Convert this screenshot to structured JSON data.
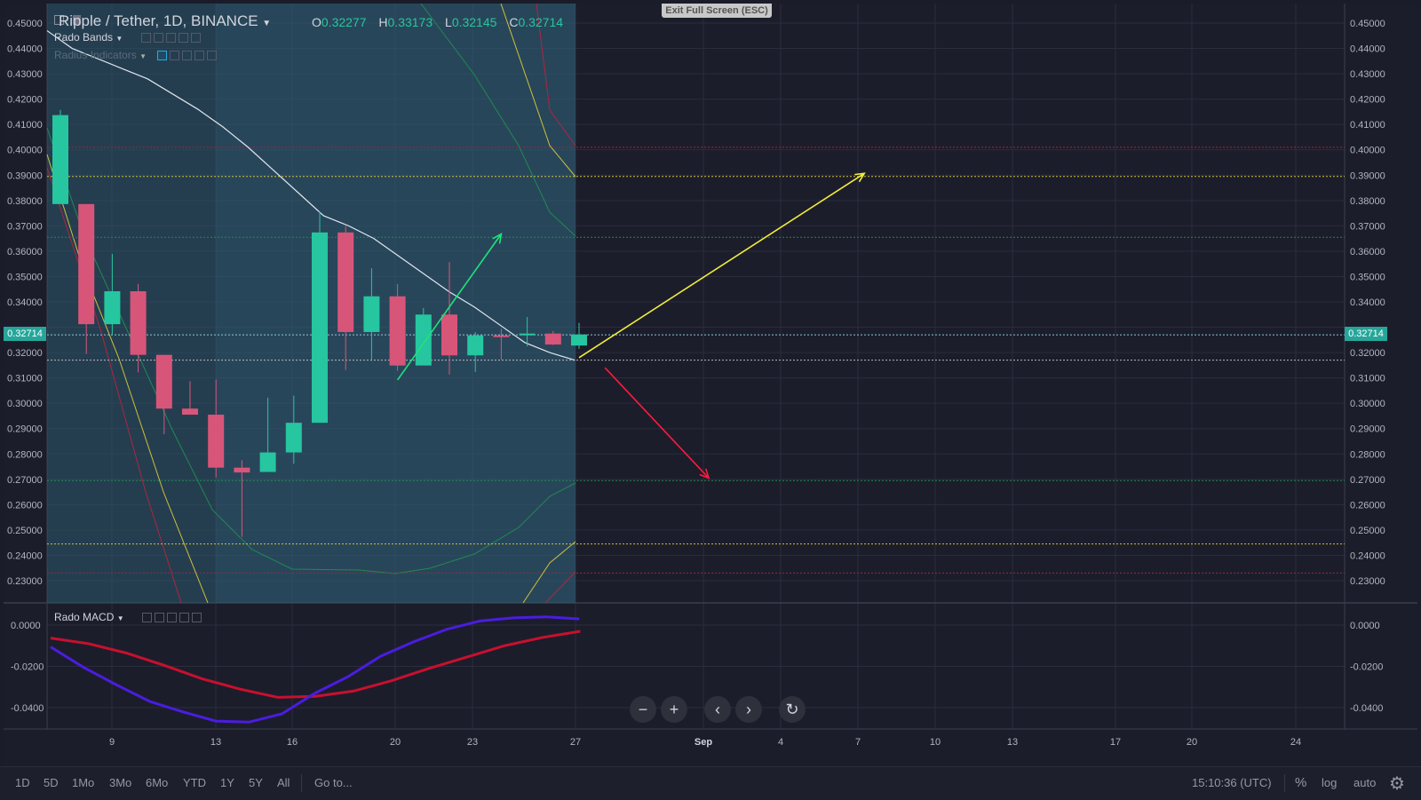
{
  "window": {
    "exit_fullscreen": "Exit Full Screen (ESC)"
  },
  "header": {
    "symbol_title": "Ripple / Tether, 1D, BINANCE",
    "ohlc": {
      "o_label": "O",
      "o": "0.32277",
      "h_label": "H",
      "h": "0.33173",
      "l_label": "L",
      "l": "0.32145",
      "c_label": "C",
      "c": "0.32714"
    }
  },
  "indicators": {
    "bands": "Rado Bands",
    "radius": "Radius Indicators",
    "macd": "Rado MACD"
  },
  "price_axis": {
    "ticks": [
      "0.45000",
      "0.44000",
      "0.43000",
      "0.42000",
      "0.41000",
      "0.40000",
      "0.39000",
      "0.38000",
      "0.37000",
      "0.36000",
      "0.35000",
      "0.34000",
      "0.32000",
      "0.31000",
      "0.30000",
      "0.29000",
      "0.28000",
      "0.27000",
      "0.26000",
      "0.25000",
      "0.24000",
      "0.23000"
    ],
    "current_price": "0.32714"
  },
  "macd_axis": {
    "ticks": [
      "0.0000",
      "-0.0200",
      "-0.0400"
    ]
  },
  "time_axis": {
    "ticks": [
      "9",
      "13",
      "16",
      "20",
      "23",
      "27",
      "Sep",
      "4",
      "7",
      "10",
      "13",
      "17",
      "20",
      "24"
    ]
  },
  "colors": {
    "bull": "#26c6a0",
    "bear": "#d8557a",
    "background": "#1c1d2b",
    "band_fill": "#2b5a70"
  },
  "nav_buttons": {
    "zoom_out": "−",
    "zoom_in": "+",
    "scroll_left": "‹",
    "scroll_right": "›",
    "reset": "↻"
  },
  "bottom_bar": {
    "ranges": [
      "1D",
      "5D",
      "1Mo",
      "3Mo",
      "6Mo",
      "YTD",
      "1Y",
      "5Y",
      "All"
    ],
    "goto": "Go to...",
    "time": "15:10:36 (UTC)",
    "percent": "%",
    "log": "log",
    "auto": "auto",
    "settings_icon": "gear-icon"
  },
  "chart_data": {
    "type": "candlestick",
    "title": "Ripple / Tether, 1D, BINANCE",
    "ylim": [
      0.222,
      0.457
    ],
    "candles": [
      {
        "o": 0.3786,
        "h": 0.4157,
        "l": 0.3786,
        "c": 0.4137
      },
      {
        "o": 0.3786,
        "h": 0.3786,
        "l": 0.3194,
        "c": 0.3312
      },
      {
        "o": 0.3312,
        "h": 0.3589,
        "l": 0.3272,
        "c": 0.3442
      },
      {
        "o": 0.3442,
        "h": 0.3471,
        "l": 0.3122,
        "c": 0.3191
      },
      {
        "o": 0.3191,
        "h": 0.3191,
        "l": 0.2878,
        "c": 0.2979
      },
      {
        "o": 0.2979,
        "h": 0.3087,
        "l": 0.2955,
        "c": 0.2955
      },
      {
        "o": 0.2955,
        "h": 0.3094,
        "l": 0.2707,
        "c": 0.2746
      },
      {
        "o": 0.2746,
        "h": 0.2775,
        "l": 0.2473,
        "c": 0.2727
      },
      {
        "o": 0.2729,
        "h": 0.3022,
        "l": 0.2729,
        "c": 0.2806
      },
      {
        "o": 0.2806,
        "h": 0.303,
        "l": 0.2761,
        "c": 0.2923
      },
      {
        "o": 0.2923,
        "h": 0.3756,
        "l": 0.2923,
        "c": 0.3674
      },
      {
        "o": 0.3674,
        "h": 0.3699,
        "l": 0.3131,
        "c": 0.3281
      },
      {
        "o": 0.3281,
        "h": 0.3533,
        "l": 0.3167,
        "c": 0.3422
      },
      {
        "o": 0.3422,
        "h": 0.347,
        "l": 0.3128,
        "c": 0.3149
      },
      {
        "o": 0.3149,
        "h": 0.3376,
        "l": 0.315,
        "c": 0.335
      },
      {
        "o": 0.335,
        "h": 0.3557,
        "l": 0.3113,
        "c": 0.3189
      },
      {
        "o": 0.3189,
        "h": 0.3281,
        "l": 0.3124,
        "c": 0.3268
      },
      {
        "o": 0.3268,
        "h": 0.3294,
        "l": 0.3172,
        "c": 0.3266
      },
      {
        "o": 0.3268,
        "h": 0.334,
        "l": 0.3225,
        "c": 0.3275
      },
      {
        "o": 0.3275,
        "h": 0.3285,
        "l": 0.323,
        "c": 0.3232
      },
      {
        "o": 0.32277,
        "h": 0.33173,
        "l": 0.32145,
        "c": 0.32714
      }
    ],
    "ma": [
      0.447,
      0.44,
      0.436,
      0.432,
      0.428,
      0.422,
      0.416,
      0.409,
      0.401,
      0.392,
      0.383,
      0.374,
      0.37,
      0.365,
      0.358,
      0.351,
      0.344,
      0.338,
      0.331,
      0.324,
      0.32,
      0.317
    ],
    "hlines": [
      {
        "y": 0.401,
        "color": "#a3243b"
      },
      {
        "y": 0.3895,
        "color": "#cfc13a"
      },
      {
        "y": 0.3655,
        "color": "#1f8a52"
      },
      {
        "y": 0.327,
        "color": "#8fc6d8"
      },
      {
        "y": 0.317,
        "color": "#b8b8b8"
      },
      {
        "y": 0.2695,
        "color": "#1f8a52"
      },
      {
        "y": 0.2445,
        "color": "#cfc13a"
      },
      {
        "y": 0.233,
        "color": "#a3243b"
      }
    ],
    "arrows": [
      {
        "color": "#1ee37a",
        "from": [
          20.0,
          0.3092
        ],
        "to": [
          24.0,
          0.3668
        ]
      },
      {
        "color": "#f2ee3a",
        "from": [
          27.0,
          0.318
        ],
        "to": [
          38.0,
          0.3907
        ]
      },
      {
        "color": "#ff1a3c",
        "from": [
          28.0,
          0.314
        ],
        "to": [
          32.0,
          0.2705
        ]
      }
    ],
    "macd": {
      "ylim": [
        -0.054,
        0.006
      ],
      "line": [
        -0.0106,
        -0.0205,
        -0.029,
        -0.037,
        -0.042,
        -0.0465,
        -0.047,
        -0.043,
        -0.033,
        -0.025,
        -0.015,
        -0.008,
        -0.002,
        0.002,
        0.0035,
        0.004,
        0.003
      ],
      "signal": [
        -0.0063,
        -0.009,
        -0.0135,
        -0.0195,
        -0.026,
        -0.031,
        -0.035,
        -0.0345,
        -0.032,
        -0.027,
        -0.021,
        -0.0155,
        -0.01,
        -0.006,
        -0.003
      ]
    }
  }
}
